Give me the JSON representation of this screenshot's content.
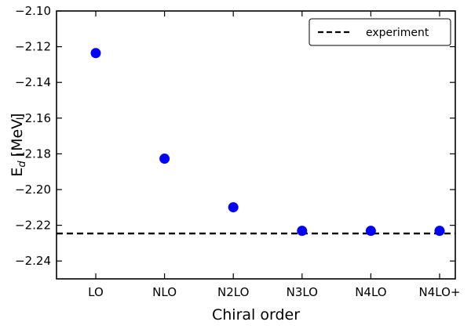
{
  "chart_data": {
    "type": "scatter",
    "xlabel": "Chiral order",
    "ylabel": "E",
    "ylabel_subscript": "d",
    "ylabel_unit": "[MeV]",
    "categories": [
      "LO",
      "NLO",
      "N2LO",
      "N3LO",
      "N4LO",
      "N4LO+"
    ],
    "series": [
      {
        "values": [
          -2.1236,
          -2.1827,
          -2.2099,
          -2.2231,
          -2.2231,
          -2.2231
        ],
        "color": "#0000ff"
      }
    ],
    "reference_line": {
      "name": "experiment",
      "value": -2.2246,
      "style": "dashed",
      "color": "#000000"
    },
    "ylim": [
      -2.25,
      -2.1
    ],
    "yticks": [
      -2.1,
      -2.12,
      -2.14,
      -2.16,
      -2.18,
      -2.2,
      -2.22,
      -2.24
    ],
    "ytick_labels": [
      "−2.10",
      "−2.12",
      "−2.14",
      "−2.16",
      "−2.18",
      "−2.20",
      "−2.22",
      "−2.24"
    ],
    "legend_position": "top-right",
    "grid": false
  }
}
